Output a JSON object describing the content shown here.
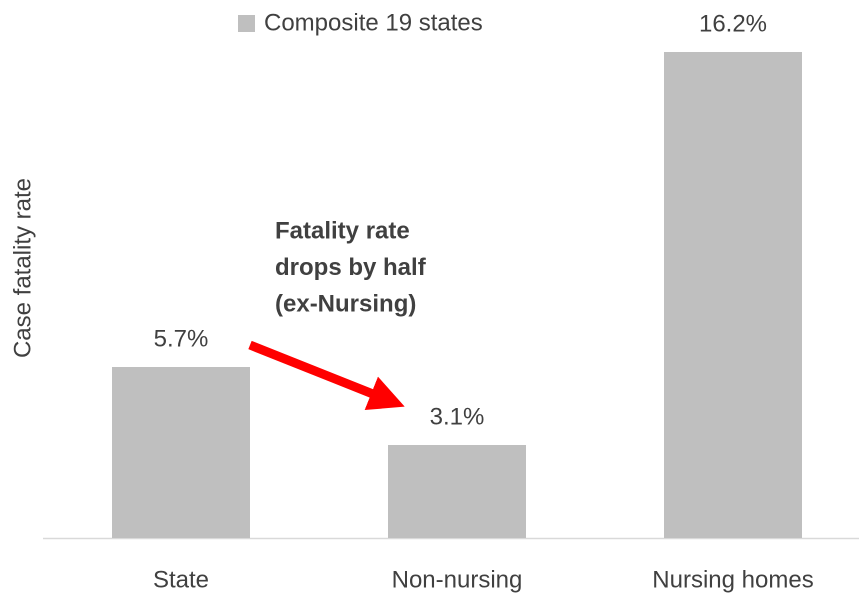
{
  "chart_data": {
    "type": "bar",
    "y_label": "Case fatality rate",
    "categories": [
      "State",
      "Non-nursing",
      "Nursing homes"
    ],
    "series": [
      {
        "name": "Composite 19 states",
        "color": "#bfbfbf",
        "values": [
          5.7,
          3.1,
          16.2
        ],
        "value_labels": [
          "5.7%",
          "3.1%",
          "16.2%"
        ]
      }
    ],
    "ylim": [
      0,
      17
    ],
    "annotation": [
      "Fatality rate",
      "drops by half",
      "(ex-Nursing)"
    ],
    "annotation_color": "#ff0000"
  }
}
